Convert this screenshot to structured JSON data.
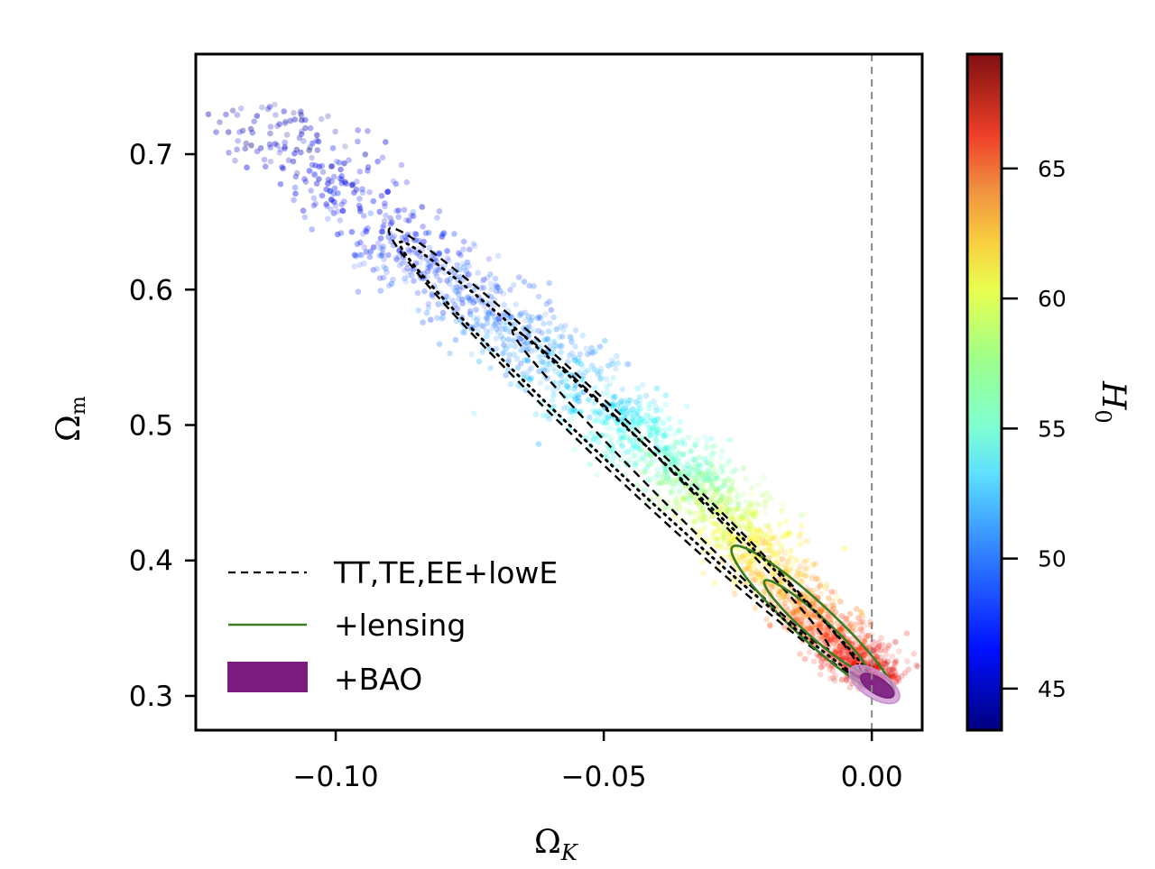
{
  "chart_data": {
    "type": "scatter",
    "title": "",
    "xlabel": "Ω",
    "xlabel_sub": "K",
    "ylabel": "Ω",
    "ylabel_sub": "m",
    "xlim": [
      -0.1261,
      0.0094
    ],
    "ylim": [
      0.2747,
      0.7739
    ],
    "x_ticks": [
      -0.1,
      -0.05,
      0.0
    ],
    "x_tick_labels": [
      "−0.10",
      "−0.05",
      "0.00"
    ],
    "y_ticks": [
      0.3,
      0.4,
      0.5,
      0.6,
      0.7
    ],
    "y_tick_labels": [
      "0.3",
      "0.4",
      "0.5",
      "0.6",
      "0.7"
    ],
    "grid": false,
    "reference_line": {
      "axis": "x",
      "value": 0.0,
      "style": "dashed",
      "color": "#888888"
    },
    "colorbar": {
      "label": "H",
      "label_sub": "0",
      "colormap": "jet",
      "range": [
        43.4,
        69.4
      ],
      "ticks": [
        45,
        50,
        55,
        60,
        65
      ],
      "tick_labels": [
        "45",
        "50",
        "55",
        "60",
        "65"
      ]
    },
    "scatter_samples": {
      "description": "MCMC samples colored by H0",
      "ridge": [
        {
          "omega_k": -0.115,
          "omega_m": 0.735,
          "h0": 44.5
        },
        {
          "omega_k": -0.09,
          "omega_m": 0.64,
          "h0": 47.0
        },
        {
          "omega_k": -0.07,
          "omega_m": 0.58,
          "h0": 49.0
        },
        {
          "omega_k": -0.05,
          "omega_m": 0.515,
          "h0": 52.0
        },
        {
          "omega_k": -0.035,
          "omega_m": 0.465,
          "h0": 55.5
        },
        {
          "omega_k": -0.025,
          "omega_m": 0.425,
          "h0": 59.0
        },
        {
          "omega_k": -0.015,
          "omega_m": 0.375,
          "h0": 62.5
        },
        {
          "omega_k": -0.005,
          "omega_m": 0.335,
          "h0": 65.5
        },
        {
          "omega_k": 0.002,
          "omega_m": 0.31,
          "h0": 67.5
        }
      ]
    },
    "legend": {
      "location": "lower-left",
      "entries": [
        {
          "label": "TT,TE,EE+lowE",
          "style": "dashed",
          "color": "#000000"
        },
        {
          "label": "+lensing",
          "style": "solid",
          "color": "#3a7d24"
        },
        {
          "label": "+BAO",
          "style": "filled",
          "color": "#7b1c7e"
        }
      ]
    },
    "contours": [
      {
        "name": "TT,TE,EE+lowE 95%",
        "style": "dashed",
        "color": "#000000",
        "center": [
          -0.043,
          0.475
        ],
        "major_start": [
          -0.09,
          0.645
        ],
        "major_end": [
          -0.002,
          0.315
        ],
        "half_width": 0.0045
      },
      {
        "name": "TT,TE,EE+lowE 68%",
        "style": "dashed",
        "color": "#000000",
        "center": [
          -0.035,
          0.455
        ],
        "major_start": [
          -0.067,
          0.57
        ],
        "major_end": [
          -0.008,
          0.335
        ],
        "half_width": 0.0025
      },
      {
        "name": "+lensing 95%",
        "style": "solid",
        "color": "#3a7d24",
        "center": [
          -0.01,
          0.35
        ],
        "major_start": [
          -0.026,
          0.41
        ],
        "major_end": [
          0.004,
          0.3
        ],
        "half_width": 0.0035
      },
      {
        "name": "+lensing 68%",
        "style": "solid",
        "color": "#3a7d24",
        "center": [
          -0.01,
          0.35
        ],
        "major_start": [
          -0.02,
          0.385
        ],
        "major_end": [
          -0.001,
          0.318
        ],
        "half_width": 0.002
      },
      {
        "name": "TT,TE,EE+lowE (dotted)",
        "style": "dotted",
        "color": "#000000",
        "center": [
          -0.043,
          0.475
        ],
        "major_start": [
          -0.088,
          0.635
        ],
        "major_end": [
          0.0,
          0.31
        ],
        "half_width": 0.0035
      },
      {
        "name": "+BAO 95%",
        "style": "filled",
        "color": "#c98fd0",
        "center": [
          0.0015,
          0.307
        ],
        "major_start": [
          -0.004,
          0.32
        ],
        "major_end": [
          0.005,
          0.297
        ],
        "half_width": 0.0025
      },
      {
        "name": "+BAO 68%",
        "style": "filled",
        "color": "#7b1c7e",
        "center": [
          0.0015,
          0.307
        ],
        "major_start": [
          -0.002,
          0.315
        ],
        "major_end": [
          0.004,
          0.3
        ],
        "half_width": 0.0015
      }
    ]
  }
}
